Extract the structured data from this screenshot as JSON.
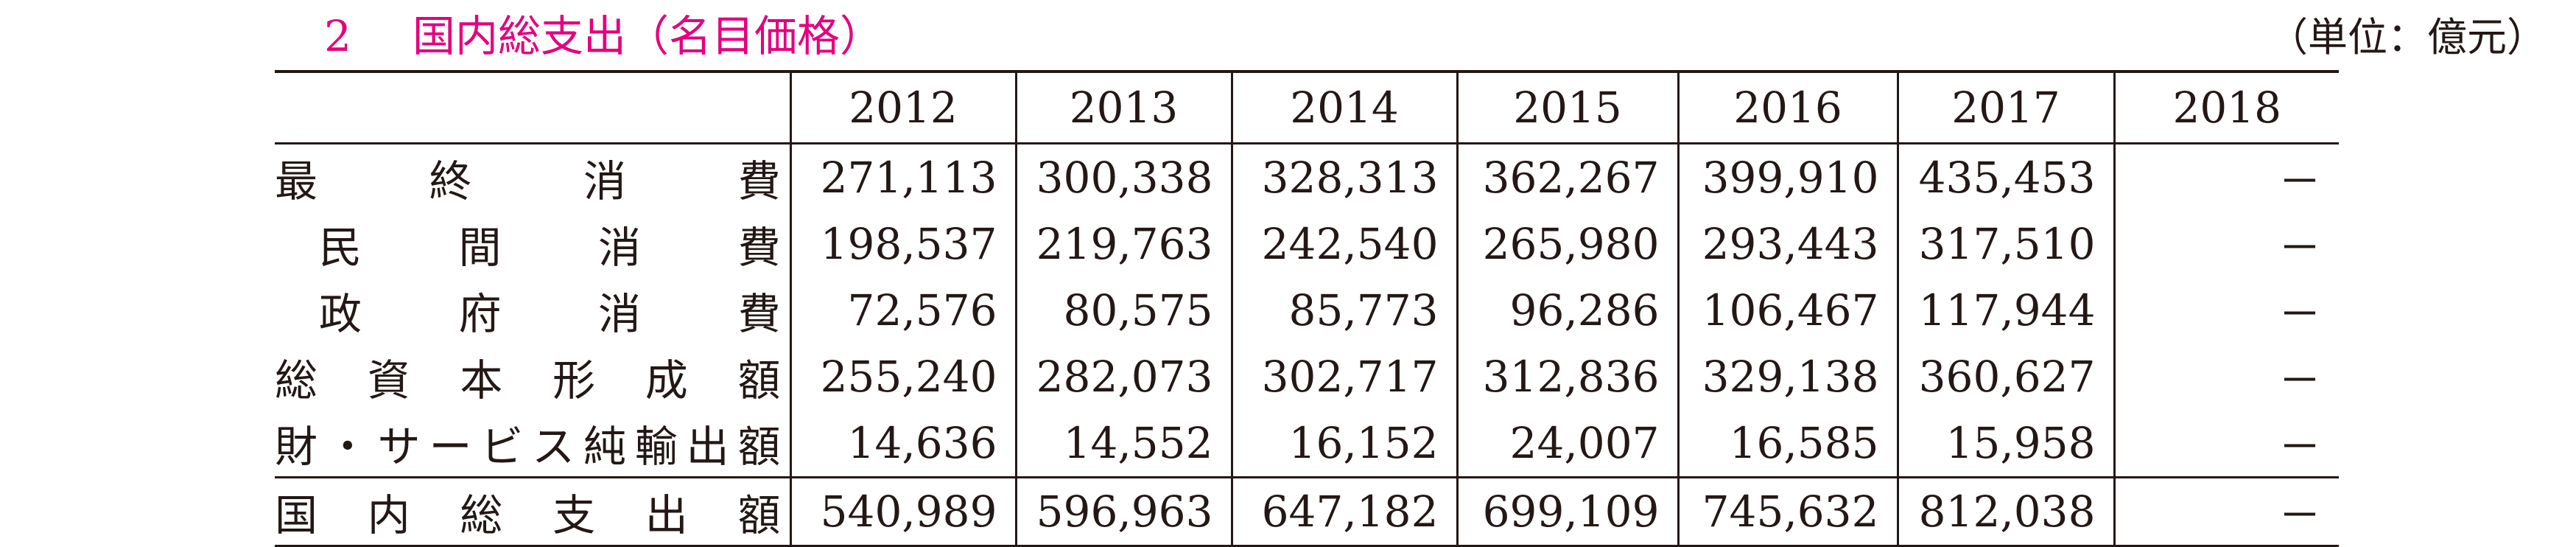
{
  "header": {
    "number": "2",
    "title": "国内総支出（名目価格）",
    "unit": "（単位：億元）"
  },
  "table": {
    "columns": [
      "2012",
      "2013",
      "2014",
      "2015",
      "2016",
      "2017",
      "2018"
    ],
    "rows": [
      {
        "label": "最終消費",
        "values": [
          "271,113",
          "300,338",
          "328,313",
          "362,267",
          "399,910",
          "435,453",
          "－"
        ]
      },
      {
        "label": "民間消費",
        "values": [
          "198,537",
          "219,763",
          "242,540",
          "265,980",
          "293,443",
          "317,510",
          "－"
        ]
      },
      {
        "label": "政府消費",
        "values": [
          "72,576",
          "80,575",
          "85,773",
          "96,286",
          "106,467",
          "117,944",
          "－"
        ]
      },
      {
        "label": "総資本形成額",
        "values": [
          "255,240",
          "282,073",
          "302,717",
          "312,836",
          "329,138",
          "360,627",
          "－"
        ]
      },
      {
        "label": "財・サービス純輸出額",
        "values": [
          "14,636",
          "14,552",
          "16,152",
          "24,007",
          "16,585",
          "15,958",
          "－"
        ]
      },
      {
        "label": "国内総支出額",
        "values": [
          "540,989",
          "596,963",
          "647,182",
          "699,109",
          "745,632",
          "812,038",
          "－"
        ]
      }
    ]
  }
}
